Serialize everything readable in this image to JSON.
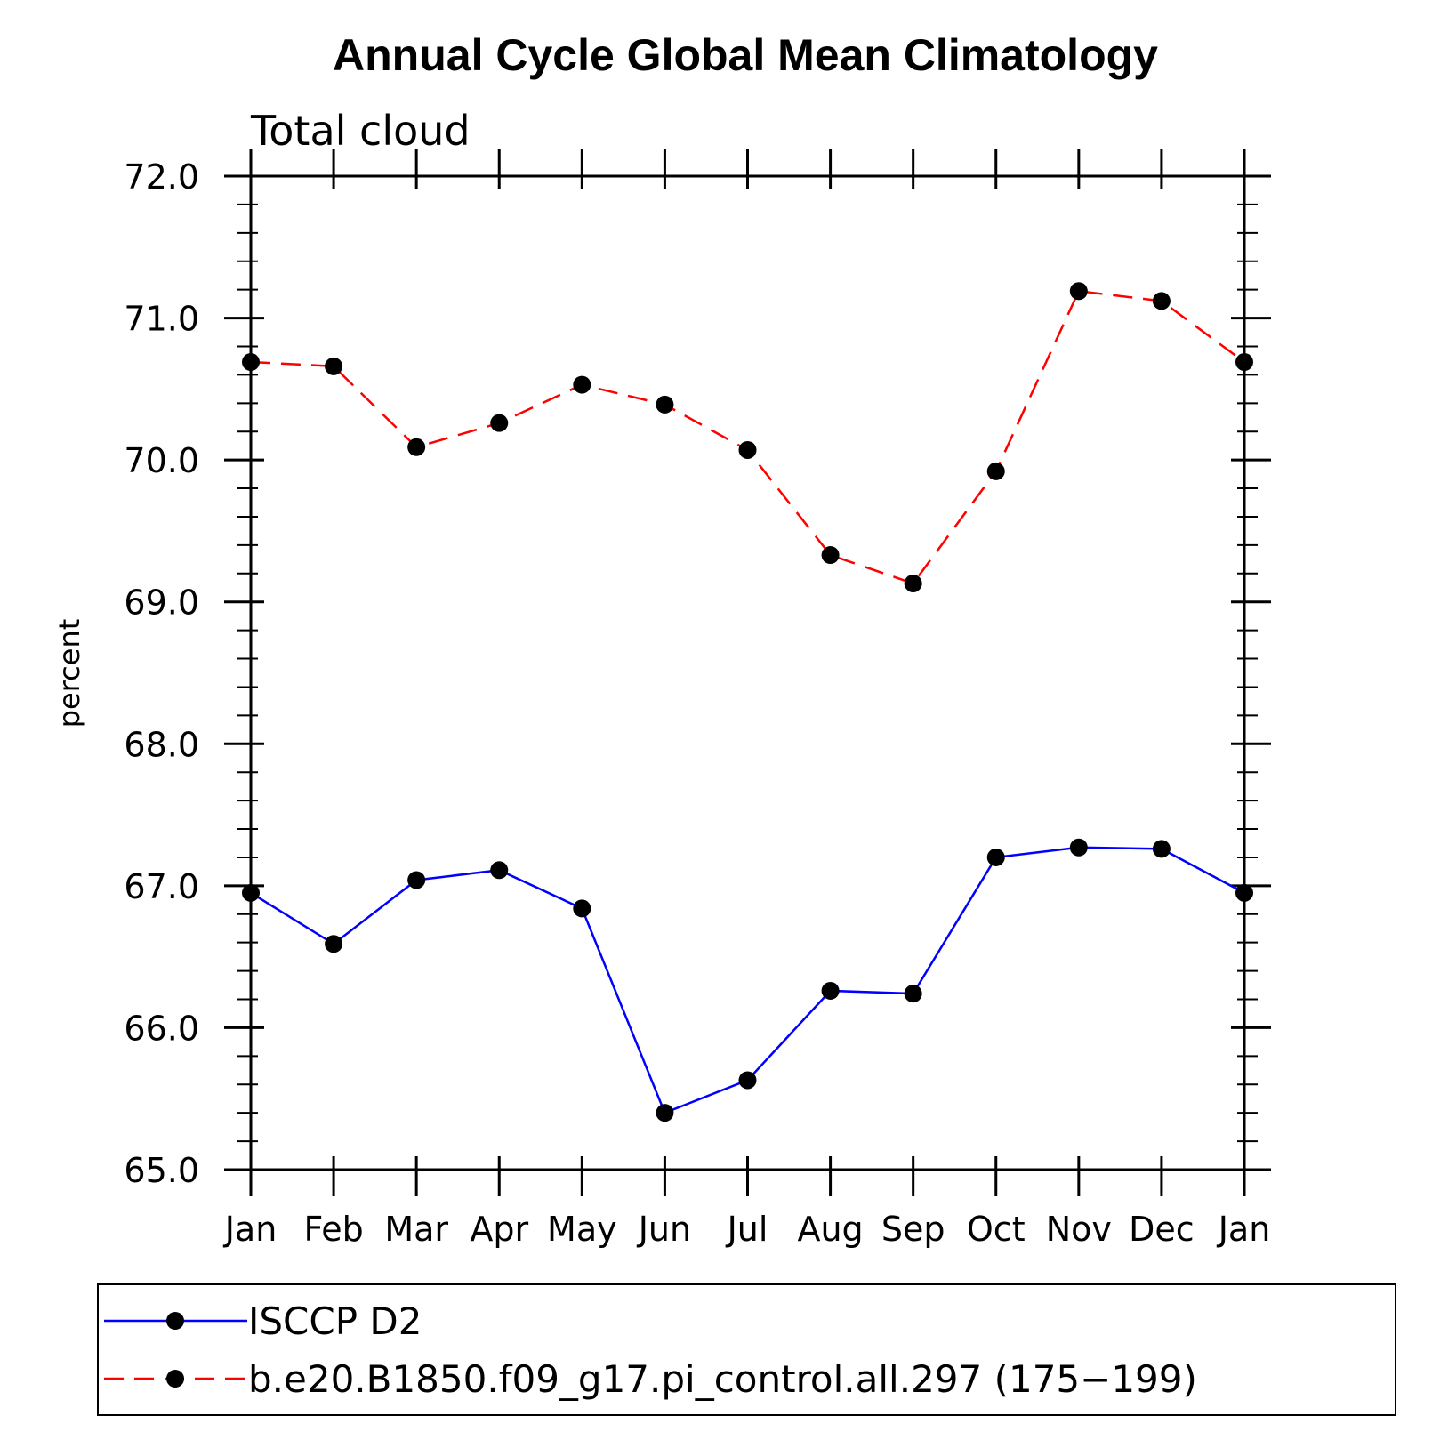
{
  "chart_data": {
    "type": "line",
    "title": "Annual Cycle Global Mean Climatology",
    "subtitle": "Total cloud",
    "xlabel": "",
    "ylabel": "percent",
    "categories": [
      "Jan",
      "Feb",
      "Mar",
      "Apr",
      "May",
      "Jun",
      "Jul",
      "Aug",
      "Sep",
      "Oct",
      "Nov",
      "Dec",
      "Jan"
    ],
    "ylim": [
      65.0,
      72.0
    ],
    "yticks": [
      "65.0",
      "66.0",
      "67.0",
      "68.0",
      "69.0",
      "70.0",
      "71.0",
      "72.0"
    ],
    "grid": false,
    "legend_position": "bottom",
    "series": [
      {
        "name": "ISCCP D2",
        "color": "#0000ff",
        "dash": "solid",
        "marker": "filled-circle",
        "values": [
          66.95,
          66.59,
          67.04,
          67.11,
          66.84,
          65.4,
          65.63,
          66.26,
          66.24,
          67.2,
          67.27,
          67.26,
          66.95
        ]
      },
      {
        "name": "b.e20.B1850.f09_g17.pi_control.all.297 (175−199)",
        "color": "#ff0000",
        "dash": "dashed",
        "marker": "filled-circle",
        "values": [
          70.69,
          70.66,
          70.09,
          70.26,
          70.53,
          70.39,
          70.07,
          69.33,
          69.13,
          69.92,
          71.19,
          71.12,
          70.69
        ]
      }
    ]
  }
}
